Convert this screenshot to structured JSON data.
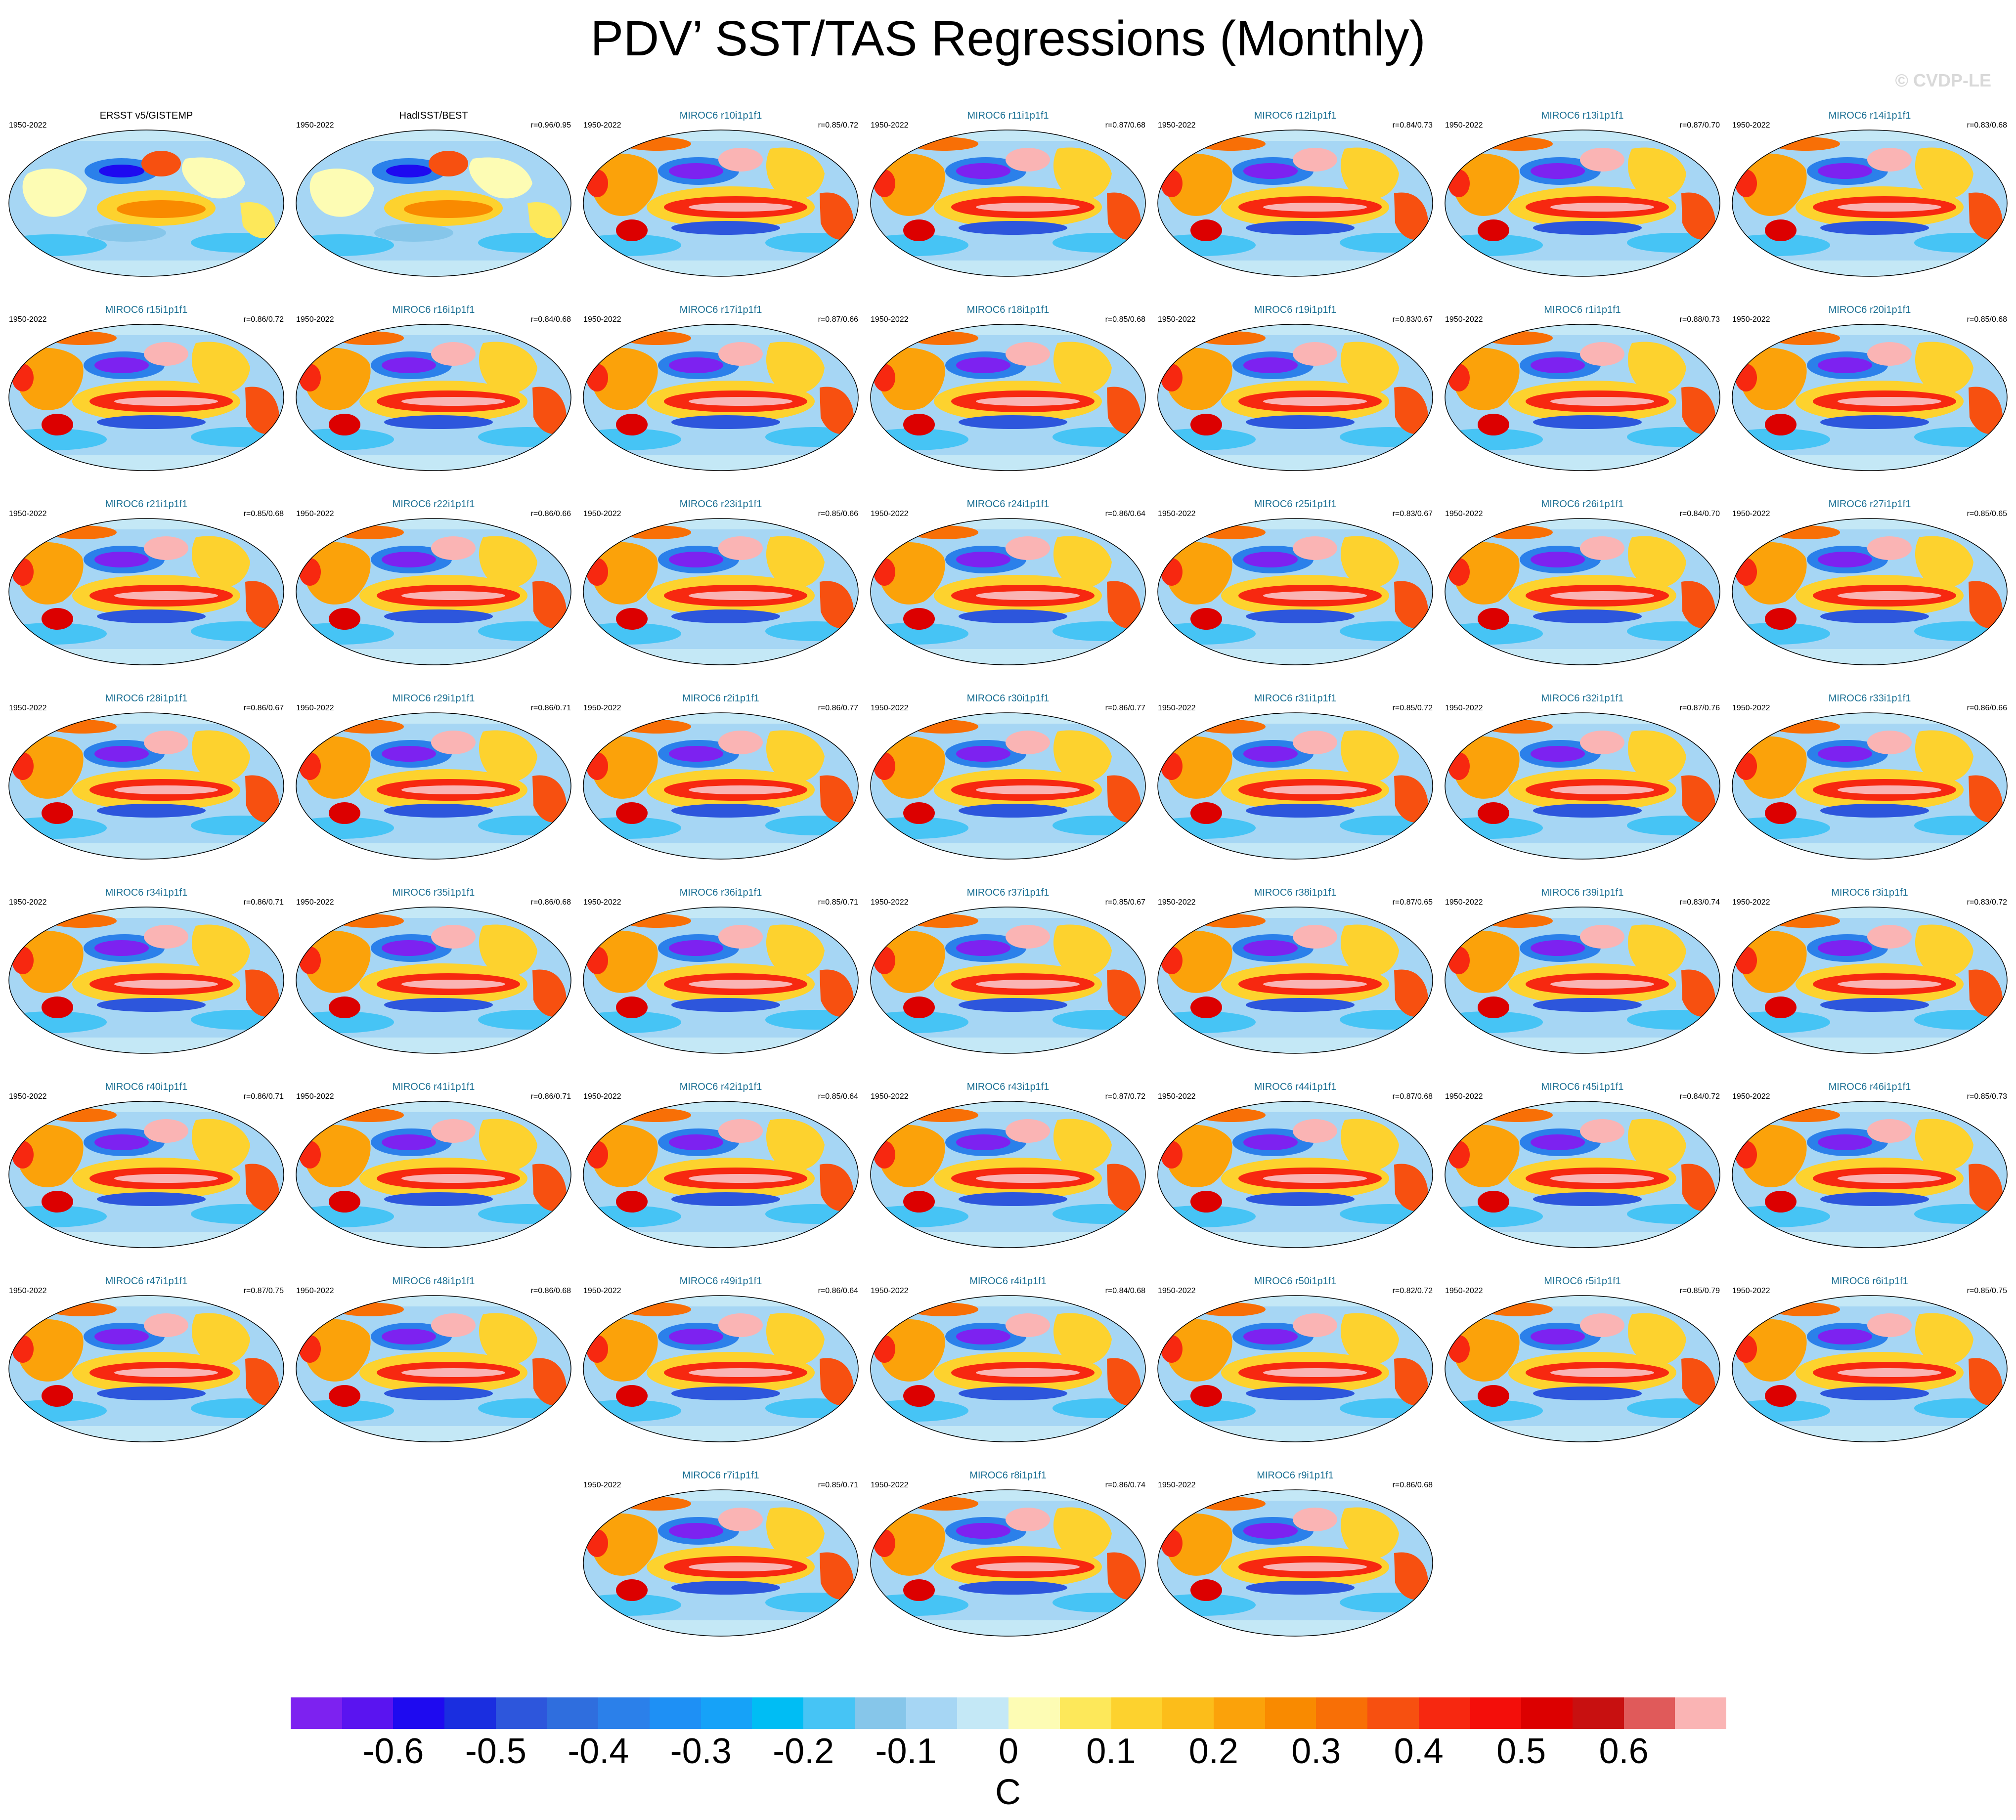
{
  "title": "PDV’ SST/TAS Regressions (Monthly)",
  "copyright": "© CVDP-LE",
  "period": "1950-2022",
  "colors": {
    "model_label": "#1a6f93",
    "obs_label": "#000000"
  },
  "panels": [
    {
      "name": "ERSST v5/GISTEMP",
      "r": "",
      "type": "obs"
    },
    {
      "name": "HadISST/BEST",
      "r": "r=0.96/0.95",
      "type": "obs"
    },
    {
      "name": "MIROC6 r10i1p1f1",
      "r": "r=0.85/0.72",
      "type": "model"
    },
    {
      "name": "MIROC6 r11i1p1f1",
      "r": "r=0.87/0.68",
      "type": "model"
    },
    {
      "name": "MIROC6 r12i1p1f1",
      "r": "r=0.84/0.73",
      "type": "model"
    },
    {
      "name": "MIROC6 r13i1p1f1",
      "r": "r=0.87/0.70",
      "type": "model"
    },
    {
      "name": "MIROC6 r14i1p1f1",
      "r": "r=0.83/0.68",
      "type": "model"
    },
    {
      "name": "MIROC6 r15i1p1f1",
      "r": "r=0.86/0.72",
      "type": "model"
    },
    {
      "name": "MIROC6 r16i1p1f1",
      "r": "r=0.84/0.68",
      "type": "model"
    },
    {
      "name": "MIROC6 r17i1p1f1",
      "r": "r=0.87/0.66",
      "type": "model"
    },
    {
      "name": "MIROC6 r18i1p1f1",
      "r": "r=0.85/0.68",
      "type": "model"
    },
    {
      "name": "MIROC6 r19i1p1f1",
      "r": "r=0.83/0.67",
      "type": "model"
    },
    {
      "name": "MIROC6 r1i1p1f1",
      "r": "r=0.88/0.73",
      "type": "model"
    },
    {
      "name": "MIROC6 r20i1p1f1",
      "r": "r=0.85/0.68",
      "type": "model"
    },
    {
      "name": "MIROC6 r21i1p1f1",
      "r": "r=0.85/0.68",
      "type": "model"
    },
    {
      "name": "MIROC6 r22i1p1f1",
      "r": "r=0.86/0.66",
      "type": "model"
    },
    {
      "name": "MIROC6 r23i1p1f1",
      "r": "r=0.85/0.66",
      "type": "model"
    },
    {
      "name": "MIROC6 r24i1p1f1",
      "r": "r=0.86/0.64",
      "type": "model"
    },
    {
      "name": "MIROC6 r25i1p1f1",
      "r": "r=0.83/0.67",
      "type": "model"
    },
    {
      "name": "MIROC6 r26i1p1f1",
      "r": "r=0.84/0.70",
      "type": "model"
    },
    {
      "name": "MIROC6 r27i1p1f1",
      "r": "r=0.85/0.65",
      "type": "model"
    },
    {
      "name": "MIROC6 r28i1p1f1",
      "r": "r=0.86/0.67",
      "type": "model"
    },
    {
      "name": "MIROC6 r29i1p1f1",
      "r": "r=0.86/0.71",
      "type": "model"
    },
    {
      "name": "MIROC6 r2i1p1f1",
      "r": "r=0.86/0.77",
      "type": "model"
    },
    {
      "name": "MIROC6 r30i1p1f1",
      "r": "r=0.86/0.77",
      "type": "model"
    },
    {
      "name": "MIROC6 r31i1p1f1",
      "r": "r=0.85/0.72",
      "type": "model"
    },
    {
      "name": "MIROC6 r32i1p1f1",
      "r": "r=0.87/0.76",
      "type": "model"
    },
    {
      "name": "MIROC6 r33i1p1f1",
      "r": "r=0.86/0.66",
      "type": "model"
    },
    {
      "name": "MIROC6 r34i1p1f1",
      "r": "r=0.86/0.71",
      "type": "model"
    },
    {
      "name": "MIROC6 r35i1p1f1",
      "r": "r=0.86/0.68",
      "type": "model"
    },
    {
      "name": "MIROC6 r36i1p1f1",
      "r": "r=0.85/0.71",
      "type": "model"
    },
    {
      "name": "MIROC6 r37i1p1f1",
      "r": "r=0.85/0.67",
      "type": "model"
    },
    {
      "name": "MIROC6 r38i1p1f1",
      "r": "r=0.87/0.65",
      "type": "model"
    },
    {
      "name": "MIROC6 r39i1p1f1",
      "r": "r=0.83/0.74",
      "type": "model"
    },
    {
      "name": "MIROC6 r3i1p1f1",
      "r": "r=0.83/0.72",
      "type": "model"
    },
    {
      "name": "MIROC6 r40i1p1f1",
      "r": "r=0.86/0.71",
      "type": "model"
    },
    {
      "name": "MIROC6 r41i1p1f1",
      "r": "r=0.86/0.71",
      "type": "model"
    },
    {
      "name": "MIROC6 r42i1p1f1",
      "r": "r=0.85/0.64",
      "type": "model"
    },
    {
      "name": "MIROC6 r43i1p1f1",
      "r": "r=0.87/0.72",
      "type": "model"
    },
    {
      "name": "MIROC6 r44i1p1f1",
      "r": "r=0.87/0.68",
      "type": "model"
    },
    {
      "name": "MIROC6 r45i1p1f1",
      "r": "r=0.84/0.72",
      "type": "model"
    },
    {
      "name": "MIROC6 r46i1p1f1",
      "r": "r=0.85/0.73",
      "type": "model"
    },
    {
      "name": "MIROC6 r47i1p1f1",
      "r": "r=0.87/0.75",
      "type": "model"
    },
    {
      "name": "MIROC6 r48i1p1f1",
      "r": "r=0.86/0.68",
      "type": "model"
    },
    {
      "name": "MIROC6 r49i1p1f1",
      "r": "r=0.86/0.64",
      "type": "model"
    },
    {
      "name": "MIROC6 r4i1p1f1",
      "r": "r=0.84/0.68",
      "type": "model"
    },
    {
      "name": "MIROC6 r50i1p1f1",
      "r": "r=0.82/0.72",
      "type": "model"
    },
    {
      "name": "MIROC6 r5i1p1f1",
      "r": "r=0.85/0.79",
      "type": "model"
    },
    {
      "name": "MIROC6 r6i1p1f1",
      "r": "r=0.85/0.75",
      "type": "model"
    },
    {
      "name": "MIROC6 r7i1p1f1",
      "r": "r=0.85/0.71",
      "type": "model"
    },
    {
      "name": "MIROC6 r8i1p1f1",
      "r": "r=0.86/0.74",
      "type": "model"
    },
    {
      "name": "MIROC6 r9i1p1f1",
      "r": "r=0.86/0.68",
      "type": "model"
    }
  ],
  "colorbar": {
    "colors": [
      "#7d22f0",
      "#5a14f0",
      "#1e0af0",
      "#1a2ee0",
      "#2d56dc",
      "#2f6ede",
      "#2b80ea",
      "#1e90f5",
      "#16a2f8",
      "#00bdf4",
      "#46c4f5",
      "#86c6ea",
      "#a6d6f4",
      "#c4e8f6",
      "#fdfcb4",
      "#fde85a",
      "#fdd22e",
      "#fcbd1a",
      "#fba20a",
      "#f98a00",
      "#f86f06",
      "#f75010",
      "#f72810",
      "#f40e0a",
      "#dc0000",
      "#c81010",
      "#e05a5a",
      "#fab4b4"
    ],
    "tick_labels": [
      "-0.6",
      "-0.5",
      "-0.4",
      "-0.3",
      "-0.2",
      "-0.1",
      "0",
      "0.1",
      "0.2",
      "0.3",
      "0.4",
      "0.5",
      "0.6"
    ],
    "unit": "C"
  }
}
